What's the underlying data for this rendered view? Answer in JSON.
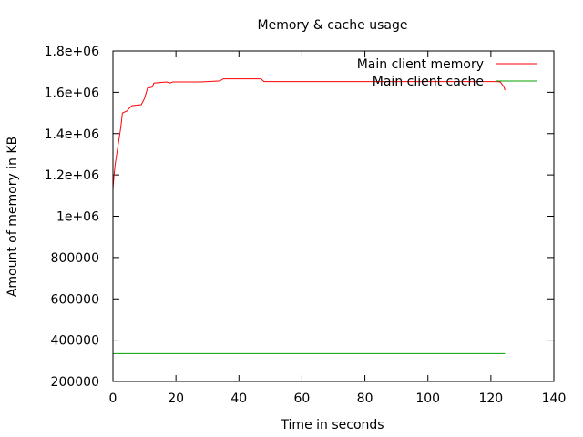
{
  "chart_data": {
    "type": "line",
    "title": "Memory & cache usage",
    "xlabel": "Time in seconds",
    "ylabel": "Amount of memory in KB",
    "xlim": [
      0,
      140
    ],
    "ylim": [
      200000,
      1800000
    ],
    "xticks": [
      0,
      20,
      40,
      60,
      80,
      100,
      120,
      140
    ],
    "yticks": [
      200000,
      400000,
      600000,
      800000,
      1000000,
      1200000,
      1400000,
      1600000,
      1800000
    ],
    "ytick_labels": [
      "200000",
      "400000",
      "600000",
      "800000",
      "1e+06",
      "1.2e+06",
      "1.4e+06",
      "1.6e+06",
      "1.8e+06"
    ],
    "grid": false,
    "legend_position": "top-right",
    "series": [
      {
        "name": "Main client memory",
        "color": "#ff0000",
        "x": [
          0,
          0.3,
          0.7,
          1.2,
          1.8,
          2.5,
          3.0,
          4.5,
          5.0,
          6.0,
          9.0,
          10.0,
          11.0,
          12.5,
          13.0,
          17.0,
          18.0,
          19.0,
          28.0,
          34.0,
          35.0,
          47.0,
          48.0,
          122.0,
          123.0,
          124.0,
          124.5
        ],
        "y": [
          1130000,
          1190000,
          1250000,
          1300000,
          1360000,
          1430000,
          1500000,
          1510000,
          1520000,
          1535000,
          1540000,
          1570000,
          1620000,
          1625000,
          1645000,
          1650000,
          1645000,
          1650000,
          1650000,
          1655000,
          1665000,
          1665000,
          1652000,
          1652000,
          1650000,
          1630000,
          1610000
        ]
      },
      {
        "name": "Main client cache",
        "color": "#00a000",
        "x": [
          0,
          124.5
        ],
        "y": [
          335000,
          335000
        ]
      }
    ]
  }
}
